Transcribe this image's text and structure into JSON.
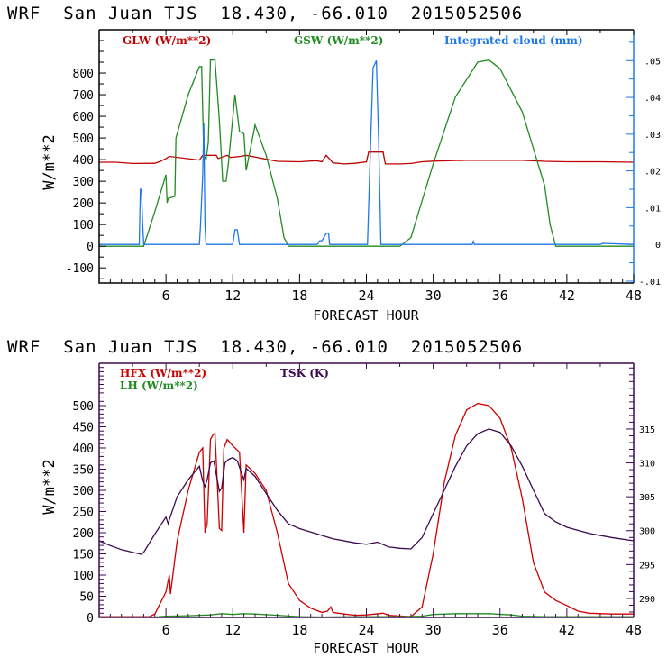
{
  "chart_data": [
    {
      "type": "line",
      "title": "WRF  San Juan TJS  18.430, -66.010  2015052506",
      "xlabel": "FORECAST HOUR",
      "ylabel": "W/m**2",
      "xlim": [
        0,
        48
      ],
      "ylim": [
        -170,
        1000
      ],
      "xticks": [
        6,
        12,
        18,
        24,
        30,
        36,
        42,
        48
      ],
      "xtick_labels": [
        "6",
        "12",
        "18",
        "24",
        "30",
        "36",
        "42",
        "48"
      ],
      "yticks": [
        -100,
        0,
        100,
        200,
        300,
        400,
        500,
        600,
        700,
        800
      ],
      "ytick_labels": [
        "-100",
        "0",
        "100",
        "200",
        "300",
        "400",
        "500",
        "600",
        "700",
        "800"
      ],
      "y2label": "",
      "y2lim": [
        -0.0105,
        0.0584
      ],
      "y2ticks": [
        -0.01,
        0,
        0.01,
        0.02,
        0.03,
        0.04,
        0.05
      ],
      "y2tick_labels": [
        "-.01",
        "0",
        ".01",
        ".02",
        ".03",
        ".04",
        ".05"
      ],
      "grid": false,
      "legend_position": "top",
      "series": [
        {
          "name": "GLW (W/m**2)",
          "color": "#c00000",
          "axis": "left",
          "x": [
            0,
            1.5,
            3,
            5,
            5.5,
            6,
            6.3,
            9,
            9.3,
            10.5,
            10.7,
            11.5,
            11.8,
            12.7,
            13.2,
            16,
            18,
            19.5,
            20,
            20.4,
            21,
            22,
            23,
            24,
            24.2,
            25.5,
            25.7,
            27,
            28,
            29,
            30,
            33,
            36,
            38,
            40,
            42,
            45,
            48
          ],
          "y": [
            388,
            388,
            382,
            383,
            392,
            405,
            415,
            398,
            420,
            420,
            405,
            420,
            410,
            415,
            420,
            392,
            390,
            395,
            390,
            420,
            385,
            380,
            383,
            390,
            435,
            435,
            380,
            380,
            382,
            390,
            393,
            397,
            397,
            397,
            392,
            390,
            390,
            388
          ]
        },
        {
          "name": "GSW (W/m**2)",
          "color": "#228b22",
          "axis": "left",
          "x": [
            0,
            3.5,
            4,
            5,
            6,
            6.1,
            6.2,
            6.8,
            6.9,
            7.5,
            8,
            9,
            9.2,
            9.4,
            9.6,
            9.8,
            10,
            10.4,
            10.8,
            11.1,
            11.4,
            11.6,
            12.2,
            12.6,
            13,
            13.2,
            14,
            15,
            16,
            16.6,
            17,
            27,
            28,
            30,
            32,
            34,
            35,
            36,
            38,
            40,
            40.5,
            41,
            48
          ],
          "y": [
            0,
            0,
            0,
            160,
            330,
            200,
            220,
            230,
            500,
            610,
            700,
            830,
            830,
            420,
            400,
            480,
            860,
            860,
            580,
            300,
            300,
            380,
            700,
            530,
            520,
            350,
            560,
            420,
            220,
            40,
            0,
            0,
            40,
            380,
            690,
            850,
            860,
            820,
            620,
            280,
            100,
            0,
            0
          ]
        },
        {
          "name": "Integrated cloud (mm)",
          "color": "#1e78e6",
          "axis": "right",
          "x": [
            0,
            3.6,
            3.7,
            3.8,
            3.9,
            4.0,
            4.1,
            9.0,
            9.1,
            9.3,
            9.4,
            9.5,
            9.6,
            12.0,
            12.2,
            12.4,
            12.6,
            19.6,
            19.8,
            20.0,
            20.4,
            20.6,
            20.7,
            24.1,
            24.3,
            24.6,
            24.9,
            25.1,
            25.3,
            33.5,
            33.6,
            33.7,
            45,
            45.2,
            48
          ],
          "y": [
            0,
            0,
            0.015,
            0.015,
            0.006,
            0,
            0,
            0,
            0.005,
            0.019,
            0.033,
            0.005,
            0,
            0,
            0.004,
            0.004,
            0,
            0,
            0.001,
            0.001,
            0.003,
            0.003,
            0,
            0,
            0.02,
            0.048,
            0.05,
            0.028,
            0,
            0,
            0.0008,
            0,
            0,
            0.0003,
            0
          ]
        }
      ]
    },
    {
      "type": "line",
      "title": "WRF  San Juan TJS  18.430, -66.010  2015052506",
      "xlabel": "FORECAST HOUR",
      "ylabel": "W/m**2",
      "xlim": [
        0,
        48
      ],
      "ylim": [
        0,
        600
      ],
      "xticks": [
        6,
        12,
        18,
        24,
        30,
        36,
        42,
        48
      ],
      "xtick_labels": [
        "6",
        "12",
        "18",
        "24",
        "30",
        "36",
        "42",
        "48"
      ],
      "yticks": [
        0,
        50,
        100,
        150,
        200,
        250,
        300,
        350,
        400,
        450,
        500
      ],
      "ytick_labels": [
        "0",
        "50",
        "100",
        "150",
        "200",
        "250",
        "300",
        "350",
        "400",
        "450",
        "500"
      ],
      "y2lim": [
        287.2,
        324.7
      ],
      "y2ticks": [
        290,
        295,
        300,
        305,
        310,
        315
      ],
      "y2tick_labels": [
        "290",
        "295",
        "300",
        "305",
        "310",
        "315"
      ],
      "grid": false,
      "legend_position": "top",
      "series": [
        {
          "name": "HFX (W/m**2)",
          "color": "#cc0000",
          "axis": "left",
          "x": [
            0,
            4.5,
            5,
            6,
            6.3,
            6.4,
            7,
            8,
            9,
            9.3,
            9.5,
            9.7,
            10,
            10.2,
            10.4,
            10.8,
            11,
            11.2,
            11.5,
            12,
            12.6,
            13,
            13.2,
            14,
            15,
            16,
            17,
            18,
            19,
            20,
            20.5,
            20.8,
            21,
            22,
            23,
            24,
            25.5,
            26,
            28,
            29,
            30,
            31,
            32,
            33,
            34,
            35,
            36,
            37,
            38,
            39,
            40,
            41,
            42,
            43,
            44,
            46,
            48
          ],
          "y": [
            2,
            2,
            8,
            60,
            100,
            55,
            180,
            300,
            390,
            400,
            200,
            220,
            420,
            430,
            435,
            210,
            205,
            400,
            420,
            405,
            390,
            200,
            360,
            340,
            300,
            200,
            80,
            40,
            22,
            12,
            15,
            25,
            12,
            8,
            5,
            6,
            10,
            5,
            2,
            25,
            150,
            320,
            430,
            490,
            505,
            500,
            470,
            400,
            280,
            130,
            60,
            40,
            28,
            15,
            10,
            8,
            8
          ]
        },
        {
          "name": "LH (W/m**2)",
          "color": "#228b22",
          "axis": "left",
          "x": [
            0,
            5,
            6,
            8,
            10,
            11,
            12,
            13,
            14,
            16,
            18,
            20,
            24,
            27,
            29,
            30,
            32,
            35,
            37,
            38,
            40,
            44,
            48
          ],
          "y": [
            1,
            1,
            3,
            4,
            6,
            9,
            7,
            9,
            8,
            5,
            2,
            1,
            2,
            2,
            3,
            7,
            9,
            9,
            6,
            3,
            2,
            2,
            2
          ]
        },
        {
          "name": "TSK (K)",
          "color": "#3c0a50",
          "axis": "right",
          "x": [
            0,
            1,
            2,
            3,
            3.8,
            4,
            5,
            6,
            6.2,
            6.3,
            7,
            8,
            9,
            9.3,
            9.5,
            9.7,
            10,
            10.3,
            10.8,
            11,
            11.3,
            11.6,
            12,
            12.4,
            13,
            13.2,
            14,
            15,
            16,
            17,
            18,
            20,
            20.6,
            21,
            23,
            24,
            25,
            26,
            27,
            28,
            29,
            30,
            31,
            32,
            33,
            34,
            35,
            36,
            37,
            38,
            39,
            40,
            41,
            42,
            44,
            46,
            48
          ],
          "y": [
            298.5,
            297.8,
            297.2,
            296.8,
            296.5,
            296.8,
            299.5,
            302.0,
            301.0,
            301.6,
            305.0,
            307.5,
            309.5,
            307.3,
            306.5,
            307.5,
            310.0,
            310.3,
            305.8,
            306.3,
            310.0,
            310.5,
            310.8,
            310.3,
            307.5,
            309.2,
            308.0,
            305.5,
            303.0,
            301.0,
            300.3,
            299.3,
            299.0,
            298.8,
            298.2,
            298.0,
            298.3,
            297.6,
            297.4,
            297.3,
            299.0,
            302.5,
            306.0,
            309.5,
            312.5,
            314.3,
            315.0,
            314.5,
            312.5,
            309.5,
            306.0,
            302.5,
            301.3,
            300.5,
            299.6,
            299.0,
            298.5
          ]
        }
      ]
    }
  ],
  "charts": [
    {
      "title": "WRF  San Juan TJS  18.430, -66.010  2015052506",
      "xlabel": "FORECAST HOUR",
      "ylabel": "W/m**2",
      "legend": [
        "GLW (W/m**2)",
        "GSW (W/m**2)",
        "Integrated cloud (mm)"
      ],
      "xtick_labels": [
        "6",
        "12",
        "18",
        "24",
        "30",
        "36",
        "42",
        "48"
      ],
      "ytick_labels": [
        "-100",
        "0",
        "100",
        "200",
        "300",
        "400",
        "500",
        "600",
        "700",
        "800"
      ],
      "y2tick_labels": [
        "-.01",
        "0",
        ".01",
        ".02",
        ".03",
        ".04",
        ".05"
      ]
    },
    {
      "title": "WRF  San Juan TJS  18.430, -66.010  2015052506",
      "xlabel": "FORECAST HOUR",
      "ylabel": "W/m**2",
      "legend": [
        "HFX (W/m**2)",
        "LH (W/m**2)",
        "TSK (K)"
      ],
      "xtick_labels": [
        "6",
        "12",
        "18",
        "24",
        "30",
        "36",
        "42",
        "48"
      ],
      "ytick_labels": [
        "0",
        "50",
        "100",
        "150",
        "200",
        "250",
        "300",
        "350",
        "400",
        "450",
        "500"
      ],
      "y2tick_labels": [
        "290",
        "295",
        "300",
        "305",
        "310",
        "315"
      ]
    }
  ]
}
